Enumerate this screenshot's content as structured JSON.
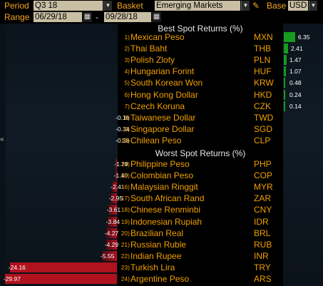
{
  "toolbar": {
    "period_label": "Period",
    "period_value": "Q3 18",
    "basket_label": "Basket",
    "basket_value": "Emerging Markets",
    "base_label": "Base",
    "base_value": "USD",
    "range_label": "Range",
    "range_start": "06/29/18",
    "range_end": "09/28/18",
    "range_separator": "-"
  },
  "best_heading": "Best Spot Returns (%)",
  "worst_heading": "Worst Spot Returns (%)",
  "colors": {
    "accent": "#f0a000",
    "positive_bar": "#169a1f",
    "negative_bar": "#b0121e",
    "background": "#000000"
  },
  "best": [
    {
      "rank": "1)",
      "name": "Mexican Peso",
      "code": "MXN",
      "value": "6.35"
    },
    {
      "rank": "2)",
      "name": "Thai Baht",
      "code": "THB",
      "value": "2.41"
    },
    {
      "rank": "3)",
      "name": "Polish Zloty",
      "code": "PLN",
      "value": "1.47"
    },
    {
      "rank": "4)",
      "name": "Hungarian Forint",
      "code": "HUF",
      "value": "1.07"
    },
    {
      "rank": "5)",
      "name": "South Korean Won",
      "code": "KRW",
      "value": "0.48"
    },
    {
      "rank": "6)",
      "name": "Hong Kong Dollar",
      "code": "HKD",
      "value": "0.24"
    },
    {
      "rank": "7)",
      "name": "Czech Koruna",
      "code": "CZK",
      "value": "0.14"
    },
    {
      "rank": "8)",
      "name": "Taiwanese Dollar",
      "code": "TWD",
      "value": "-0.16"
    },
    {
      "rank": "9)",
      "name": "Singapore Dollar",
      "code": "SGD",
      "value": "-0.34"
    },
    {
      "rank": "10)",
      "name": "Chilean Peso",
      "code": "CLP",
      "value": "-0.38"
    }
  ],
  "worst": [
    {
      "rank": "14)",
      "name": "Philippine Peso",
      "code": "PHP",
      "value": "-1.29"
    },
    {
      "rank": "15)",
      "name": "Colombian Peso",
      "code": "COP",
      "value": "-1.40"
    },
    {
      "rank": "16)",
      "name": "Malaysian Ringgit",
      "code": "MYR",
      "value": "-2.41"
    },
    {
      "rank": "17)",
      "name": "South African Rand",
      "code": "ZAR",
      "value": "-2.95"
    },
    {
      "rank": "18)",
      "name": "Chinese Renminbi",
      "code": "CNY",
      "value": "-3.61"
    },
    {
      "rank": "19)",
      "name": "Indonesian Rupiah",
      "code": "IDR",
      "value": "-3.84"
    },
    {
      "rank": "20)",
      "name": "Brazilian Real",
      "code": "BRL",
      "value": "-4.27"
    },
    {
      "rank": "21)",
      "name": "Russian Ruble",
      "code": "RUB",
      "value": "-4.29"
    },
    {
      "rank": "22)",
      "name": "Indian Rupee",
      "code": "INR",
      "value": "-5.55"
    },
    {
      "rank": "23)",
      "name": "Turkish Lira",
      "code": "TRY",
      "value": "-24.16"
    },
    {
      "rank": "24)",
      "name": "Argentine Peso",
      "code": "ARS",
      "value": "-29.97"
    }
  ]
}
